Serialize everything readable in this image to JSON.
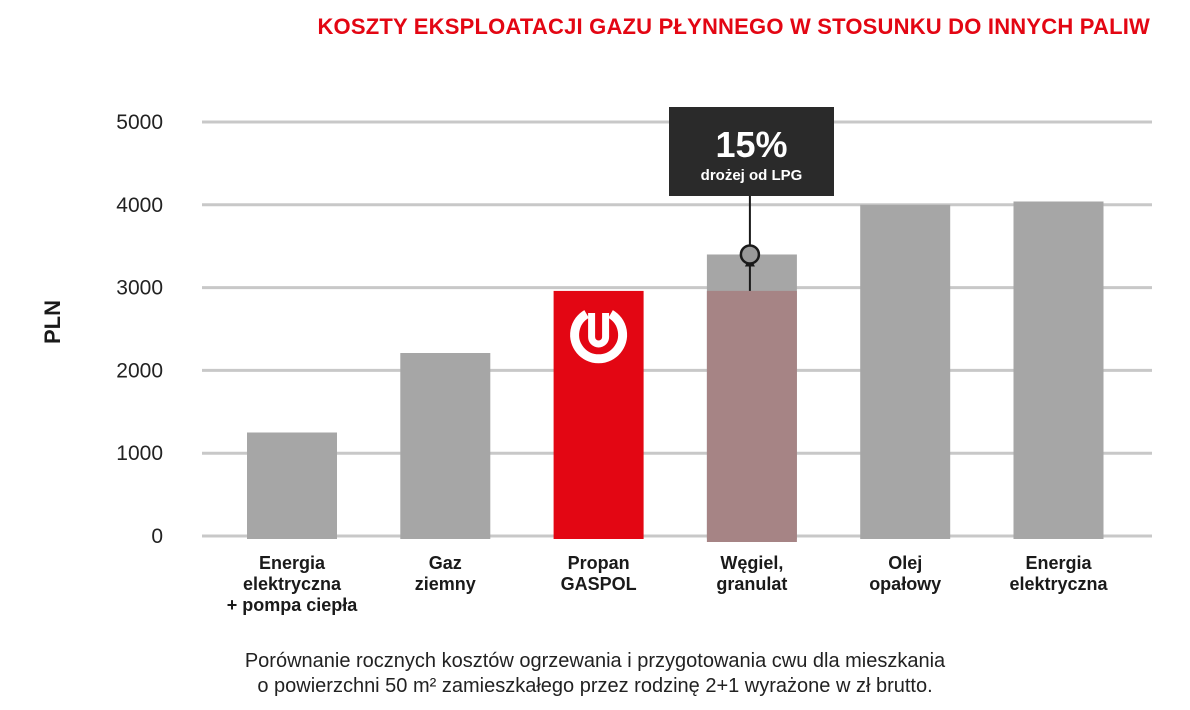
{
  "chart_data": {
    "type": "bar",
    "title": "KOSZTY EKSPLOATACJI GAZU PŁYNNEGO W STOSUNKU DO INNYCH PALIW",
    "ylabel": "PLN",
    "xlabel": "",
    "ylim": [
      0,
      5000
    ],
    "yticks": [
      0,
      1000,
      2000,
      3000,
      4000,
      5000
    ],
    "grid": true,
    "categories": [
      [
        "Energia",
        "elektryczna",
        "+ pompa ciepła"
      ],
      [
        "Gaz",
        "ziemny"
      ],
      [
        "Propan",
        "GASPOL"
      ],
      [
        "Węgiel,",
        "granulat"
      ],
      [
        "Olej",
        "opałowy"
      ],
      [
        "Energia",
        "elektryczna"
      ]
    ],
    "values": [
      1250,
      2210,
      2960,
      3400,
      4000,
      4040
    ],
    "highlight_index": 2,
    "overlay": {
      "index": 3,
      "value": 2960
    },
    "callout": {
      "index": 3,
      "big": "15%",
      "small": "drożej od LPG"
    },
    "colors": {
      "bar": "#a6a6a6",
      "highlight": "#e30613",
      "overlay": "#a68485",
      "callout_bg": "#2a2a2a",
      "grid": "#c8c8c8"
    },
    "note": [
      "Porównanie rocznych kosztów ogrzewania i przygotowania cwu dla mieszkania",
      "o powierzchni 50 m² zamieszkałego przez rodzinę 2+1 wyrażone w zł brutto."
    ]
  }
}
